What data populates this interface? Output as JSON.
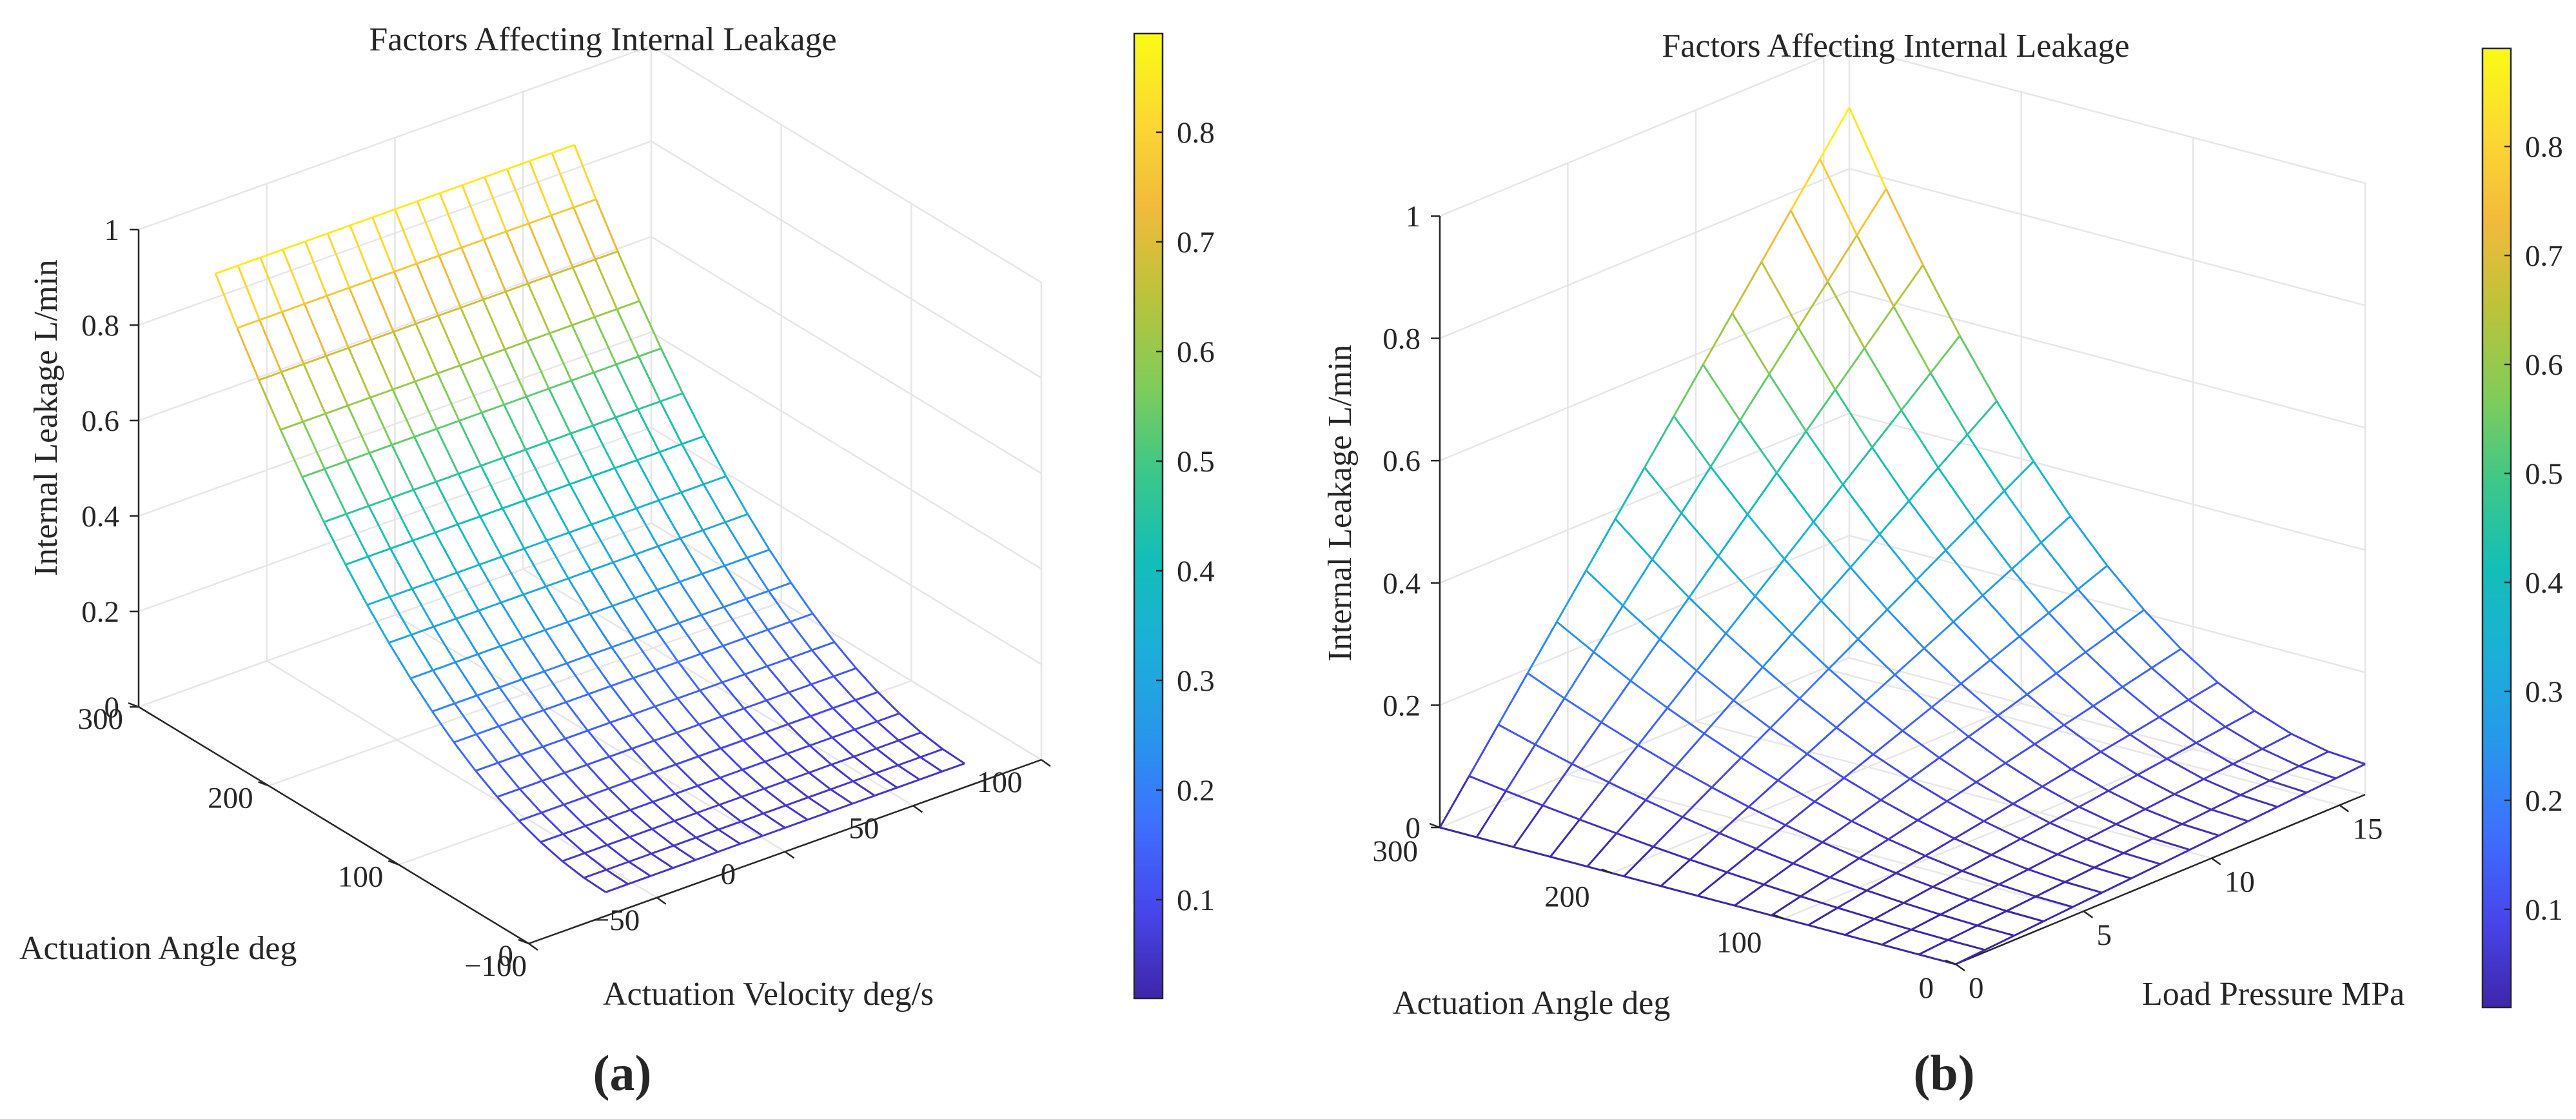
{
  "chart_data": [
    {
      "id": "a",
      "type": "surface",
      "panel_label": "(a)",
      "title": "Factors Affecting Internal Leakage",
      "xlabel": "Actuation Velocity deg/s",
      "ylabel": "Actuation Angle deg",
      "zlabel": "Internal Leakage L/min",
      "xlim": [
        -100,
        100
      ],
      "ylim": [
        0,
        300
      ],
      "zlim": [
        0,
        1
      ],
      "xticks": [
        -100,
        -50,
        0,
        50,
        100
      ],
      "xtick_labels": [
        "−100",
        "−50",
        "0",
        "50",
        "100"
      ],
      "yticks": [
        0,
        100,
        200,
        300
      ],
      "ytick_labels": [
        "0",
        "100",
        "200",
        "300"
      ],
      "zticks": [
        0,
        0.2,
        0.4,
        0.6,
        0.8,
        1
      ],
      "ztick_labels": [
        "0",
        "0.2",
        "0.4",
        "0.6",
        "0.8",
        "1"
      ],
      "mesh": {
        "x_range": [
          -70,
          70
        ],
        "y_range": [
          0,
          300
        ],
        "nx": 16,
        "ny": 18,
        "surface_model": "z = 0.05 + 0.8 * (y/300)^2, independent of velocity",
        "z_min": 0.05,
        "z_max": 0.85
      },
      "colorbar": {
        "ticks": [
          0.1,
          0.2,
          0.3,
          0.4,
          0.5,
          0.6,
          0.7,
          0.8
        ],
        "tick_labels": [
          "0.1",
          "0.2",
          "0.3",
          "0.4",
          "0.5",
          "0.6",
          "0.7",
          "0.8"
        ],
        "range": [
          0.01,
          0.89
        ]
      }
    },
    {
      "id": "b",
      "type": "surface",
      "panel_label": "(b)",
      "title": "Factors Affecting Internal Leakage",
      "xlabel": "Load Pressure MPa",
      "ylabel": "Actuation Angle deg",
      "zlabel": "Internal Leakage L/min",
      "xlim": [
        0,
        16
      ],
      "ylim": [
        0,
        300
      ],
      "zlim": [
        0,
        1
      ],
      "xticks": [
        0,
        5,
        10,
        15
      ],
      "xtick_labels": [
        "0",
        "5",
        "10",
        "15"
      ],
      "yticks": [
        0,
        100,
        200,
        300
      ],
      "ytick_labels": [
        "0",
        "100",
        "200",
        "300"
      ],
      "zticks": [
        0,
        0.2,
        0.4,
        0.6,
        0.8,
        1
      ],
      "zticks_labels_note": "",
      "ztick_labels": [
        "0",
        "0.2",
        "0.4",
        "0.6",
        "0.8",
        "1"
      ],
      "mesh": {
        "x_range": [
          0,
          16
        ],
        "y_range": [
          0,
          300
        ],
        "nx": 14,
        "ny": 14,
        "surface_model": "z = 0.05 * (x/16) + 0.85 * (x/16) * (y/300)^2",
        "z_min": 0.0,
        "z_max": 0.9
      },
      "colorbar": {
        "ticks": [
          0.1,
          0.2,
          0.3,
          0.4,
          0.5,
          0.6,
          0.7,
          0.8
        ],
        "tick_labels": [
          "0.1",
          "0.2",
          "0.3",
          "0.4",
          "0.5",
          "0.6",
          "0.7",
          "0.8"
        ],
        "range": [
          0.01,
          0.89
        ]
      }
    }
  ],
  "colormap": {
    "name": "parula",
    "stops": [
      "#3e26a8",
      "#4746eb",
      "#3d70ff",
      "#2797eb",
      "#1cafd9",
      "#13beb8",
      "#3cc78a",
      "#81cc59",
      "#bbc33a",
      "#f1ba3c",
      "#fcd831",
      "#f9fb15"
    ]
  }
}
